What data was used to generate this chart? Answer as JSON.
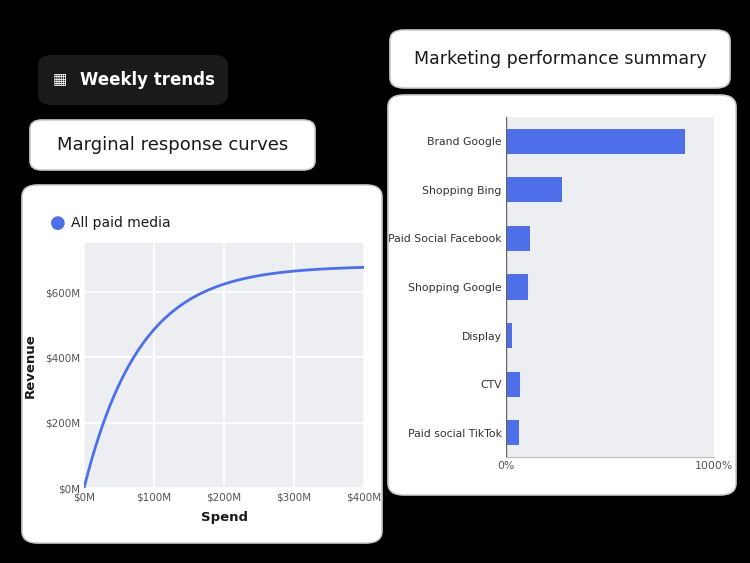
{
  "bg_color": "#000000",
  "card1_title": "Weekly trends",
  "card2_title": "Marginal response curves",
  "card3_title": "Marketing performance summary",
  "legend_label": "All paid media",
  "legend_color": "#4D6FE8",
  "curve_color": "#4D6FE8",
  "x_label": "Spend",
  "y_label": "Revenue",
  "x_ticks": [
    "$0M",
    "$100M",
    "$200M",
    "$300M",
    "$400M"
  ],
  "y_ticks": [
    "$0M",
    "$200M",
    "$400M",
    "$600M"
  ],
  "bar_categories": [
    "Brand Google",
    "Shopping Bing",
    "Paid Social Facebook",
    "Shopping Google",
    "Display",
    "CTV",
    "Paid social TikTok"
  ],
  "bar_values": [
    860,
    270,
    115,
    105,
    28,
    68,
    62
  ],
  "bar_color": "#4D6FE8",
  "bar_x_ticks": [
    "0%",
    "1000%"
  ],
  "chart_bg": "#ECEEF2",
  "card_bg": "#ffffff",
  "card_border_color": "#cccccc",
  "pill_bg": "#1a1a1a",
  "pill_text_color": "#ffffff",
  "text_dark": "#1a1a1a",
  "figw": 7.5,
  "figh": 5.63,
  "dpi": 100
}
